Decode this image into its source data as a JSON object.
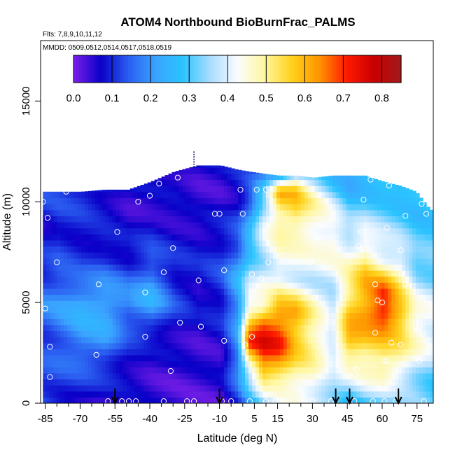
{
  "chart_data": {
    "type": "heatmap",
    "title": "ATOM4 Northbound BioBurnFrac_PALMS",
    "subtitle_flights": "Flts: 7,8,9,10,11,12",
    "subtitle_dates": "MMDD: 0509,0512,0514,0517,0518,0519",
    "xlabel": "Latitude (deg N)",
    "ylabel": "Altitude (m)",
    "xlim": [
      -87,
      82
    ],
    "ylim": [
      0,
      18000
    ],
    "x_ticks": [
      -85,
      -70,
      -55,
      -40,
      -25,
      -10,
      5,
      15,
      30,
      45,
      60,
      75
    ],
    "y_ticks": [
      0,
      5000,
      10000,
      15000
    ],
    "colorbar": {
      "range": [
        0,
        0.85
      ],
      "ticks": [
        0.0,
        0.1,
        0.2,
        0.3,
        0.4,
        0.5,
        0.6,
        0.7,
        0.8
      ],
      "tick_labels": [
        "0.0",
        "0.1",
        "0.2",
        "0.3",
        "0.4",
        "0.5",
        "0.6",
        "0.7",
        "0.8"
      ],
      "colors": [
        "#7b1fe8",
        "#0a00c8",
        "#2a5cf0",
        "#3aa3ff",
        "#2ac4ff",
        "#a8dcff",
        "#fafcff",
        "#fff7a0",
        "#ffd21a",
        "#ff9500",
        "#ff1a00",
        "#c80000",
        "#a01a1a"
      ]
    },
    "profiles": [
      {
        "lat": -86,
        "top": 10500,
        "stops": [
          [
            0,
            0.12
          ],
          [
            1500,
            0.13
          ],
          [
            3000,
            0.12
          ],
          [
            5000,
            0.18
          ],
          [
            7000,
            0.1
          ],
          [
            9000,
            0.08
          ],
          [
            10500,
            0.12
          ]
        ]
      },
      {
        "lat": -80,
        "top": 10500,
        "stops": [
          [
            0,
            0.1
          ],
          [
            1500,
            0.13
          ],
          [
            3000,
            0.15
          ],
          [
            5000,
            0.2
          ],
          [
            7000,
            0.12
          ],
          [
            9000,
            0.1
          ],
          [
            10500,
            0.12
          ]
        ]
      },
      {
        "lat": -70,
        "top": 10500,
        "stops": [
          [
            0,
            0.08
          ],
          [
            1500,
            0.12
          ],
          [
            3000,
            0.2
          ],
          [
            5000,
            0.24
          ],
          [
            7000,
            0.1
          ],
          [
            9000,
            0.09
          ],
          [
            10500,
            0.12
          ]
        ]
      },
      {
        "lat": -60,
        "top": 10600,
        "stops": [
          [
            0,
            0.05
          ],
          [
            1500,
            0.1
          ],
          [
            3000,
            0.2
          ],
          [
            5000,
            0.24
          ],
          [
            7000,
            0.12
          ],
          [
            9000,
            0.07
          ],
          [
            10600,
            0.1
          ]
        ]
      },
      {
        "lat": -50,
        "top": 10600,
        "stops": [
          [
            0,
            0.04
          ],
          [
            1500,
            0.08
          ],
          [
            3000,
            0.1
          ],
          [
            5000,
            0.2
          ],
          [
            7000,
            0.1
          ],
          [
            9000,
            0.05
          ],
          [
            10600,
            0.06
          ]
        ]
      },
      {
        "lat": -40,
        "top": 11000,
        "stops": [
          [
            0,
            0.04
          ],
          [
            1500,
            0.05
          ],
          [
            3000,
            0.06
          ],
          [
            5000,
            0.24
          ],
          [
            6000,
            0.2
          ],
          [
            8000,
            0.1
          ],
          [
            10000,
            0.05
          ],
          [
            11000,
            0.06
          ]
        ]
      },
      {
        "lat": -30,
        "top": 11500,
        "stops": [
          [
            0,
            0.04
          ],
          [
            1500,
            0.04
          ],
          [
            3000,
            0.06
          ],
          [
            5000,
            0.12
          ],
          [
            8000,
            0.08
          ],
          [
            10000,
            0.05
          ],
          [
            11500,
            0.08
          ]
        ]
      },
      {
        "lat": -20,
        "top": 11800,
        "stops": [
          [
            0,
            0.04
          ],
          [
            2000,
            0.04
          ],
          [
            4000,
            0.06
          ],
          [
            6000,
            0.08
          ],
          [
            8000,
            0.08
          ],
          [
            10000,
            0.04
          ],
          [
            11800,
            0.06
          ]
        ]
      },
      {
        "lat": -10,
        "top": 11800,
        "stops": [
          [
            0,
            0.04
          ],
          [
            2000,
            0.05
          ],
          [
            4000,
            0.08
          ],
          [
            6000,
            0.12
          ],
          [
            8000,
            0.1
          ],
          [
            10000,
            0.05
          ],
          [
            11800,
            0.06
          ]
        ]
      },
      {
        "lat": -3,
        "top": 11600,
        "stops": [
          [
            0,
            0.1
          ],
          [
            2000,
            0.2
          ],
          [
            4000,
            0.2
          ],
          [
            6000,
            0.24
          ],
          [
            8000,
            0.14
          ],
          [
            10000,
            0.08
          ],
          [
            11600,
            0.08
          ]
        ]
      },
      {
        "lat": 2,
        "top": 11500,
        "stops": [
          [
            0,
            0.2
          ],
          [
            1500,
            0.38
          ],
          [
            3000,
            0.7
          ],
          [
            4500,
            0.5
          ],
          [
            6000,
            0.36
          ],
          [
            8000,
            0.26
          ],
          [
            10000,
            0.16
          ],
          [
            11500,
            0.1
          ]
        ]
      },
      {
        "lat": 8,
        "top": 11400,
        "stops": [
          [
            0,
            0.3
          ],
          [
            1500,
            0.6
          ],
          [
            3000,
            0.75
          ],
          [
            4000,
            0.68
          ],
          [
            5000,
            0.45
          ],
          [
            7000,
            0.36
          ],
          [
            9000,
            0.4
          ],
          [
            10500,
            0.3
          ],
          [
            11400,
            0.14
          ]
        ]
      },
      {
        "lat": 15,
        "top": 11300,
        "stops": [
          [
            0,
            0.38
          ],
          [
            1500,
            0.56
          ],
          [
            3000,
            0.72
          ],
          [
            4500,
            0.64
          ],
          [
            6000,
            0.42
          ],
          [
            8000,
            0.46
          ],
          [
            9500,
            0.52
          ],
          [
            10500,
            0.6
          ],
          [
            11300,
            0.24
          ]
        ]
      },
      {
        "lat": 22,
        "top": 11300,
        "stops": [
          [
            0,
            0.42
          ],
          [
            1500,
            0.5
          ],
          [
            3000,
            0.58
          ],
          [
            4500,
            0.62
          ],
          [
            6000,
            0.4
          ],
          [
            8000,
            0.45
          ],
          [
            9500,
            0.55
          ],
          [
            10500,
            0.58
          ],
          [
            11300,
            0.38
          ]
        ]
      },
      {
        "lat": 30,
        "top": 11200,
        "stops": [
          [
            0,
            0.4
          ],
          [
            1500,
            0.46
          ],
          [
            3000,
            0.5
          ],
          [
            4500,
            0.48
          ],
          [
            6000,
            0.38
          ],
          [
            8000,
            0.44
          ],
          [
            10000,
            0.48
          ],
          [
            11200,
            0.36
          ]
        ]
      },
      {
        "lat": 38,
        "top": 11300,
        "stops": [
          [
            0,
            0.36
          ],
          [
            1500,
            0.36
          ],
          [
            3000,
            0.42
          ],
          [
            4500,
            0.36
          ],
          [
            6000,
            0.38
          ],
          [
            8000,
            0.46
          ],
          [
            10000,
            0.38
          ],
          [
            11300,
            0.26
          ]
        ]
      },
      {
        "lat": 45,
        "top": 11300,
        "stops": [
          [
            0,
            0.26
          ],
          [
            1500,
            0.42
          ],
          [
            3000,
            0.6
          ],
          [
            4500,
            0.58
          ],
          [
            6000,
            0.5
          ],
          [
            8000,
            0.4
          ],
          [
            10000,
            0.28
          ],
          [
            11300,
            0.22
          ]
        ]
      },
      {
        "lat": 52,
        "top": 11300,
        "stops": [
          [
            0,
            0.3
          ],
          [
            1500,
            0.46
          ],
          [
            3000,
            0.56
          ],
          [
            4500,
            0.64
          ],
          [
            6000,
            0.6
          ],
          [
            8000,
            0.44
          ],
          [
            10000,
            0.3
          ],
          [
            11300,
            0.24
          ]
        ]
      },
      {
        "lat": 60,
        "top": 11000,
        "stops": [
          [
            0,
            0.3
          ],
          [
            1500,
            0.5
          ],
          [
            3000,
            0.55
          ],
          [
            4500,
            0.74
          ],
          [
            5500,
            0.7
          ],
          [
            7000,
            0.44
          ],
          [
            9000,
            0.34
          ],
          [
            11000,
            0.26
          ]
        ]
      },
      {
        "lat": 67,
        "top": 10800,
        "stops": [
          [
            0,
            0.3
          ],
          [
            1500,
            0.44
          ],
          [
            3000,
            0.52
          ],
          [
            4500,
            0.62
          ],
          [
            6000,
            0.5
          ],
          [
            8000,
            0.36
          ],
          [
            10000,
            0.28
          ],
          [
            10800,
            0.24
          ]
        ]
      },
      {
        "lat": 74,
        "top": 10500,
        "stops": [
          [
            0,
            0.32
          ],
          [
            1500,
            0.36
          ],
          [
            3000,
            0.46
          ],
          [
            4500,
            0.46
          ],
          [
            6000,
            0.36
          ],
          [
            8000,
            0.3
          ],
          [
            10500,
            0.26
          ]
        ]
      },
      {
        "lat": 80,
        "top": 9600,
        "stops": [
          [
            0,
            0.3
          ],
          [
            1500,
            0.32
          ],
          [
            3000,
            0.42
          ],
          [
            4500,
            0.42
          ],
          [
            6000,
            0.34
          ],
          [
            8000,
            0.3
          ],
          [
            9600,
            0.28
          ]
        ]
      }
    ],
    "samples": [
      [
        -86,
        10000
      ],
      [
        -84,
        9200
      ],
      [
        -85,
        4700
      ],
      [
        -83,
        2800
      ],
      [
        -83,
        1300
      ],
      [
        -80,
        7000
      ],
      [
        -76,
        10500
      ],
      [
        -62,
        5900
      ],
      [
        -63,
        2400
      ],
      [
        -58,
        100
      ],
      [
        -54,
        8500
      ],
      [
        -52,
        100
      ],
      [
        -49,
        100
      ],
      [
        -46,
        100
      ],
      [
        -45,
        10000
      ],
      [
        -42,
        5500
      ],
      [
        -42,
        3300
      ],
      [
        -40,
        10300
      ],
      [
        -36,
        10900
      ],
      [
        -34,
        6500
      ],
      [
        -34,
        100
      ],
      [
        -31,
        1600
      ],
      [
        -30,
        7700
      ],
      [
        -28,
        11200
      ],
      [
        -27,
        4000
      ],
      [
        -24,
        100
      ],
      [
        -21,
        100
      ],
      [
        -19,
        6100
      ],
      [
        -18,
        3800
      ],
      [
        -12,
        9400
      ],
      [
        -10,
        9400
      ],
      [
        -9,
        100
      ],
      [
        -8,
        6600
      ],
      [
        -8,
        3100
      ],
      [
        -5,
        100
      ],
      [
        -1,
        10600
      ],
      [
        0,
        9400
      ],
      [
        1,
        2900
      ],
      [
        3,
        100
      ],
      [
        4,
        3300
      ],
      [
        4,
        6400
      ],
      [
        6,
        10600
      ],
      [
        8,
        6200
      ],
      [
        10,
        10600
      ],
      [
        10,
        100
      ],
      [
        11,
        7000
      ],
      [
        14,
        100
      ],
      [
        16,
        100
      ],
      [
        29,
        7000
      ],
      [
        30,
        100
      ],
      [
        38,
        100
      ],
      [
        40,
        8200
      ],
      [
        44,
        11600
      ],
      [
        48,
        100
      ],
      [
        49,
        1700
      ],
      [
        50,
        7800
      ],
      [
        51,
        8500
      ],
      [
        52,
        10100
      ],
      [
        55,
        11100
      ],
      [
        56,
        100
      ],
      [
        57,
        3500
      ],
      [
        57,
        5900
      ],
      [
        58,
        5100
      ],
      [
        60,
        5000
      ],
      [
        61,
        2100
      ],
      [
        61,
        100
      ],
      [
        62,
        2100
      ],
      [
        62,
        8700
      ],
      [
        63,
        10800
      ],
      [
        64,
        3000
      ],
      [
        66,
        100
      ],
      [
        68,
        7600
      ],
      [
        68,
        2900
      ],
      [
        70,
        5900
      ],
      [
        70,
        9300
      ],
      [
        73,
        10900
      ],
      [
        75,
        3600
      ],
      [
        76,
        2100
      ],
      [
        77,
        9900
      ],
      [
        78,
        100
      ],
      [
        79,
        9400
      ]
    ],
    "arrows": [
      -55,
      -10,
      40,
      46,
      67
    ],
    "marker_lat": -21
  }
}
